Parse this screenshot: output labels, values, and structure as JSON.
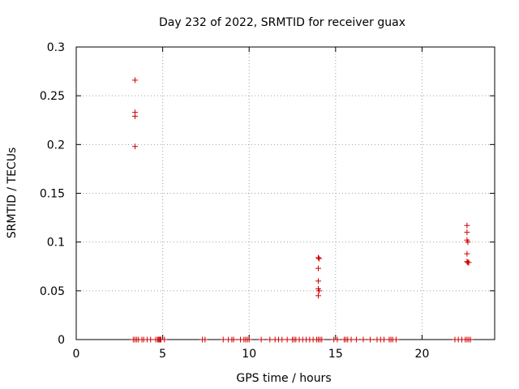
{
  "chart_data": {
    "type": "scatter",
    "title": "Day 232 of 2022, SRMTID for receiver guax",
    "xlabel": "GPS time / hours",
    "ylabel": "SRMTID / TECUs",
    "xlim": [
      0,
      24.2
    ],
    "ylim": [
      0,
      0.3
    ],
    "xticks": [
      0,
      5,
      10,
      15,
      20
    ],
    "xtick_labels": [
      "0",
      "5",
      "10",
      "15",
      "20"
    ],
    "yticks": [
      0,
      0.05,
      0.1,
      0.15,
      0.2,
      0.25,
      0.3
    ],
    "ytick_labels": [
      "0",
      "0.05",
      "0.1",
      "0.15",
      "0.2",
      "0.25",
      "0.3"
    ],
    "grid": true,
    "marker": "+",
    "color": "#cc0000",
    "series": [
      {
        "name": "SRMTID",
        "points": [
          [
            3.4,
            0.266
          ],
          [
            3.4,
            0.233
          ],
          [
            3.4,
            0.229
          ],
          [
            3.4,
            0.198
          ],
          [
            14.0,
            0.084
          ],
          [
            14.05,
            0.083
          ],
          [
            14.0,
            0.073
          ],
          [
            14.0,
            0.06
          ],
          [
            14.0,
            0.052
          ],
          [
            14.05,
            0.05
          ],
          [
            14.0,
            0.045
          ],
          [
            22.6,
            0.117
          ],
          [
            22.6,
            0.11
          ],
          [
            22.6,
            0.102
          ],
          [
            22.65,
            0.1
          ],
          [
            22.6,
            0.088
          ],
          [
            22.6,
            0.08
          ],
          [
            22.65,
            0.079
          ],
          [
            22.7,
            0.079
          ],
          [
            3.3,
            0
          ],
          [
            3.4,
            0
          ],
          [
            3.5,
            0
          ],
          [
            3.6,
            0
          ],
          [
            3.8,
            0
          ],
          [
            3.9,
            0
          ],
          [
            4.1,
            0
          ],
          [
            4.3,
            0
          ],
          [
            4.6,
            0
          ],
          [
            4.7,
            0
          ],
          [
            4.75,
            0
          ],
          [
            4.8,
            0
          ],
          [
            4.85,
            0
          ],
          [
            4.9,
            0
          ],
          [
            5.1,
            0
          ],
          [
            7.3,
            0
          ],
          [
            7.45,
            0
          ],
          [
            8.5,
            0
          ],
          [
            8.8,
            0
          ],
          [
            9.0,
            0
          ],
          [
            9.1,
            0
          ],
          [
            9.5,
            0
          ],
          [
            9.7,
            0
          ],
          [
            9.8,
            0
          ],
          [
            9.9,
            0
          ],
          [
            10.0,
            0
          ],
          [
            10.7,
            0
          ],
          [
            11.2,
            0
          ],
          [
            11.5,
            0
          ],
          [
            11.7,
            0
          ],
          [
            11.9,
            0
          ],
          [
            12.2,
            0
          ],
          [
            12.5,
            0
          ],
          [
            12.6,
            0
          ],
          [
            12.7,
            0
          ],
          [
            12.9,
            0
          ],
          [
            13.1,
            0
          ],
          [
            13.3,
            0
          ],
          [
            13.5,
            0
          ],
          [
            13.7,
            0
          ],
          [
            13.9,
            0
          ],
          [
            14.0,
            0
          ],
          [
            14.1,
            0
          ],
          [
            14.2,
            0
          ],
          [
            14.9,
            0
          ],
          [
            15.1,
            0
          ],
          [
            15.5,
            0
          ],
          [
            15.6,
            0
          ],
          [
            15.7,
            0
          ],
          [
            15.9,
            0
          ],
          [
            16.2,
            0
          ],
          [
            16.6,
            0
          ],
          [
            17.0,
            0
          ],
          [
            17.4,
            0
          ],
          [
            17.6,
            0
          ],
          [
            17.8,
            0
          ],
          [
            18.1,
            0
          ],
          [
            18.2,
            0
          ],
          [
            18.3,
            0
          ],
          [
            18.5,
            0
          ],
          [
            21.9,
            0
          ],
          [
            22.1,
            0
          ],
          [
            22.3,
            0
          ],
          [
            22.5,
            0
          ],
          [
            22.6,
            0
          ],
          [
            22.7,
            0
          ],
          [
            22.8,
            0
          ]
        ]
      }
    ]
  }
}
